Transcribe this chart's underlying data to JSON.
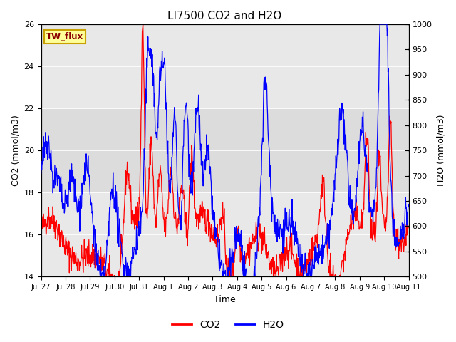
{
  "title": "LI7500 CO2 and H2O",
  "xlabel": "Time",
  "ylabel_left": "CO2 (mmol/m3)",
  "ylabel_right": "H2O (mmol/m3)",
  "ylim_left": [
    14,
    26
  ],
  "ylim_right": [
    500,
    1000
  ],
  "yticks_left": [
    14,
    16,
    18,
    20,
    22,
    24,
    26
  ],
  "yticks_right": [
    500,
    550,
    600,
    650,
    700,
    750,
    800,
    850,
    900,
    950,
    1000
  ],
  "bg_color": "#ffffff",
  "plot_bg_color": "#e8e8e8",
  "band1_lo": 18,
  "band1_hi": 22,
  "band2_lo": 14,
  "band2_hi": 18,
  "band3_lo": 22,
  "band3_hi": 26,
  "band_inner_color": "#dcdcdc",
  "band_outer_color": "#c8c8c8",
  "annotation_text": "TW_flux",
  "annotation_color": "#8B0000",
  "annotation_bg": "#ffff99",
  "annotation_border": "#c8a000",
  "grid_color": "#ffffff",
  "co2_color": "red",
  "h2o_color": "blue",
  "tick_labels": [
    "Jul 27",
    "Jul 28",
    "Jul 29",
    "Jul 30",
    "Jul 31",
    "Aug 1",
    "Aug 2",
    "Aug 3",
    "Aug 4",
    "Aug 5",
    "Aug 6",
    "Aug 7",
    "Aug 8",
    "Aug 9",
    "Aug 10",
    "Aug 11"
  ],
  "n_points": 960,
  "title_fontsize": 11,
  "axis_label_fontsize": 9,
  "tick_fontsize": 8,
  "legend_fontsize": 10
}
